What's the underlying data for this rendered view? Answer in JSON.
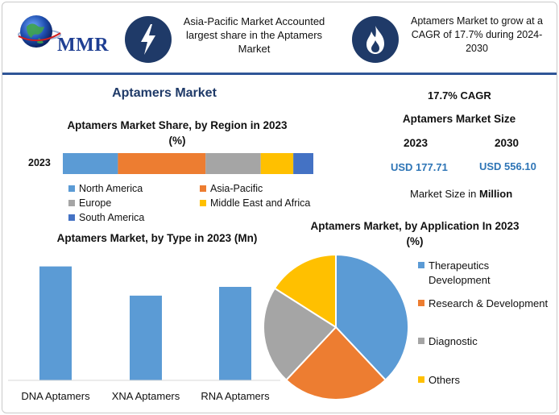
{
  "brand": {
    "logo_text": "MMR"
  },
  "header": {
    "callout_1": "Asia-Pacific Market Accounted largest share in the Aptamers Market",
    "callout_2": "Aptamers Market to grow at a CAGR of 17.7% during 2024-2030"
  },
  "colors": {
    "header_icon_bg": "#1f3a68",
    "accent_blue": "#2e75b6",
    "title_blue": "#1f3a68",
    "rule_blue": "#2f5597"
  },
  "icons": [
    "globe-icon",
    "lightning-bolt-icon",
    "flame-icon"
  ],
  "main_title": "Aptamers Market",
  "summary": {
    "cagr": "17.7% CAGR",
    "size_title": "Aptamers Market Size",
    "year_1": "2023",
    "year_2": "2030",
    "value_1": "USD 177.71",
    "value_2": "USD 556.10",
    "unit_prefix": "Market Size in ",
    "unit_bold": "Million"
  },
  "chart_data": [
    {
      "type": "bar",
      "orientation": "horizontal-stacked",
      "title": "Aptamers Market Share, by Region in 2023",
      "subtitle": "(%)",
      "categories": [
        "2023"
      ],
      "series": [
        {
          "name": "North America",
          "values": [
            22
          ],
          "color": "#5b9bd5"
        },
        {
          "name": "Asia-Pacific",
          "values": [
            35
          ],
          "color": "#ed7d31"
        },
        {
          "name": "Europe",
          "values": [
            22
          ],
          "color": "#a5a5a5"
        },
        {
          "name": "Middle East and Africa",
          "values": [
            13
          ],
          "color": "#ffc000"
        },
        {
          "name": "South America",
          "values": [
            8
          ],
          "color": "#4472c4"
        }
      ],
      "legend_position": "bottom",
      "grid": false
    },
    {
      "type": "bar",
      "title": "Aptamers Market, by Type in 2023 (Mn)",
      "categories": [
        "DNA Aptamers",
        "XNA Aptamers",
        "RNA Aptamers"
      ],
      "values": [
        78,
        58,
        64
      ],
      "ylim": [
        0,
        80
      ],
      "color": "#5b9bd5",
      "grid": false
    },
    {
      "type": "pie",
      "title": "Aptamers Market, by Application In 2023",
      "subtitle": "(%)",
      "labels": [
        "Therapeutics Development",
        "Research & Development",
        "Diagnostic",
        "Others"
      ],
      "values": [
        38,
        24,
        22,
        16
      ],
      "colors": [
        "#5b9bd5",
        "#ed7d31",
        "#a5a5a5",
        "#ffc000"
      ],
      "legend_position": "right"
    }
  ]
}
